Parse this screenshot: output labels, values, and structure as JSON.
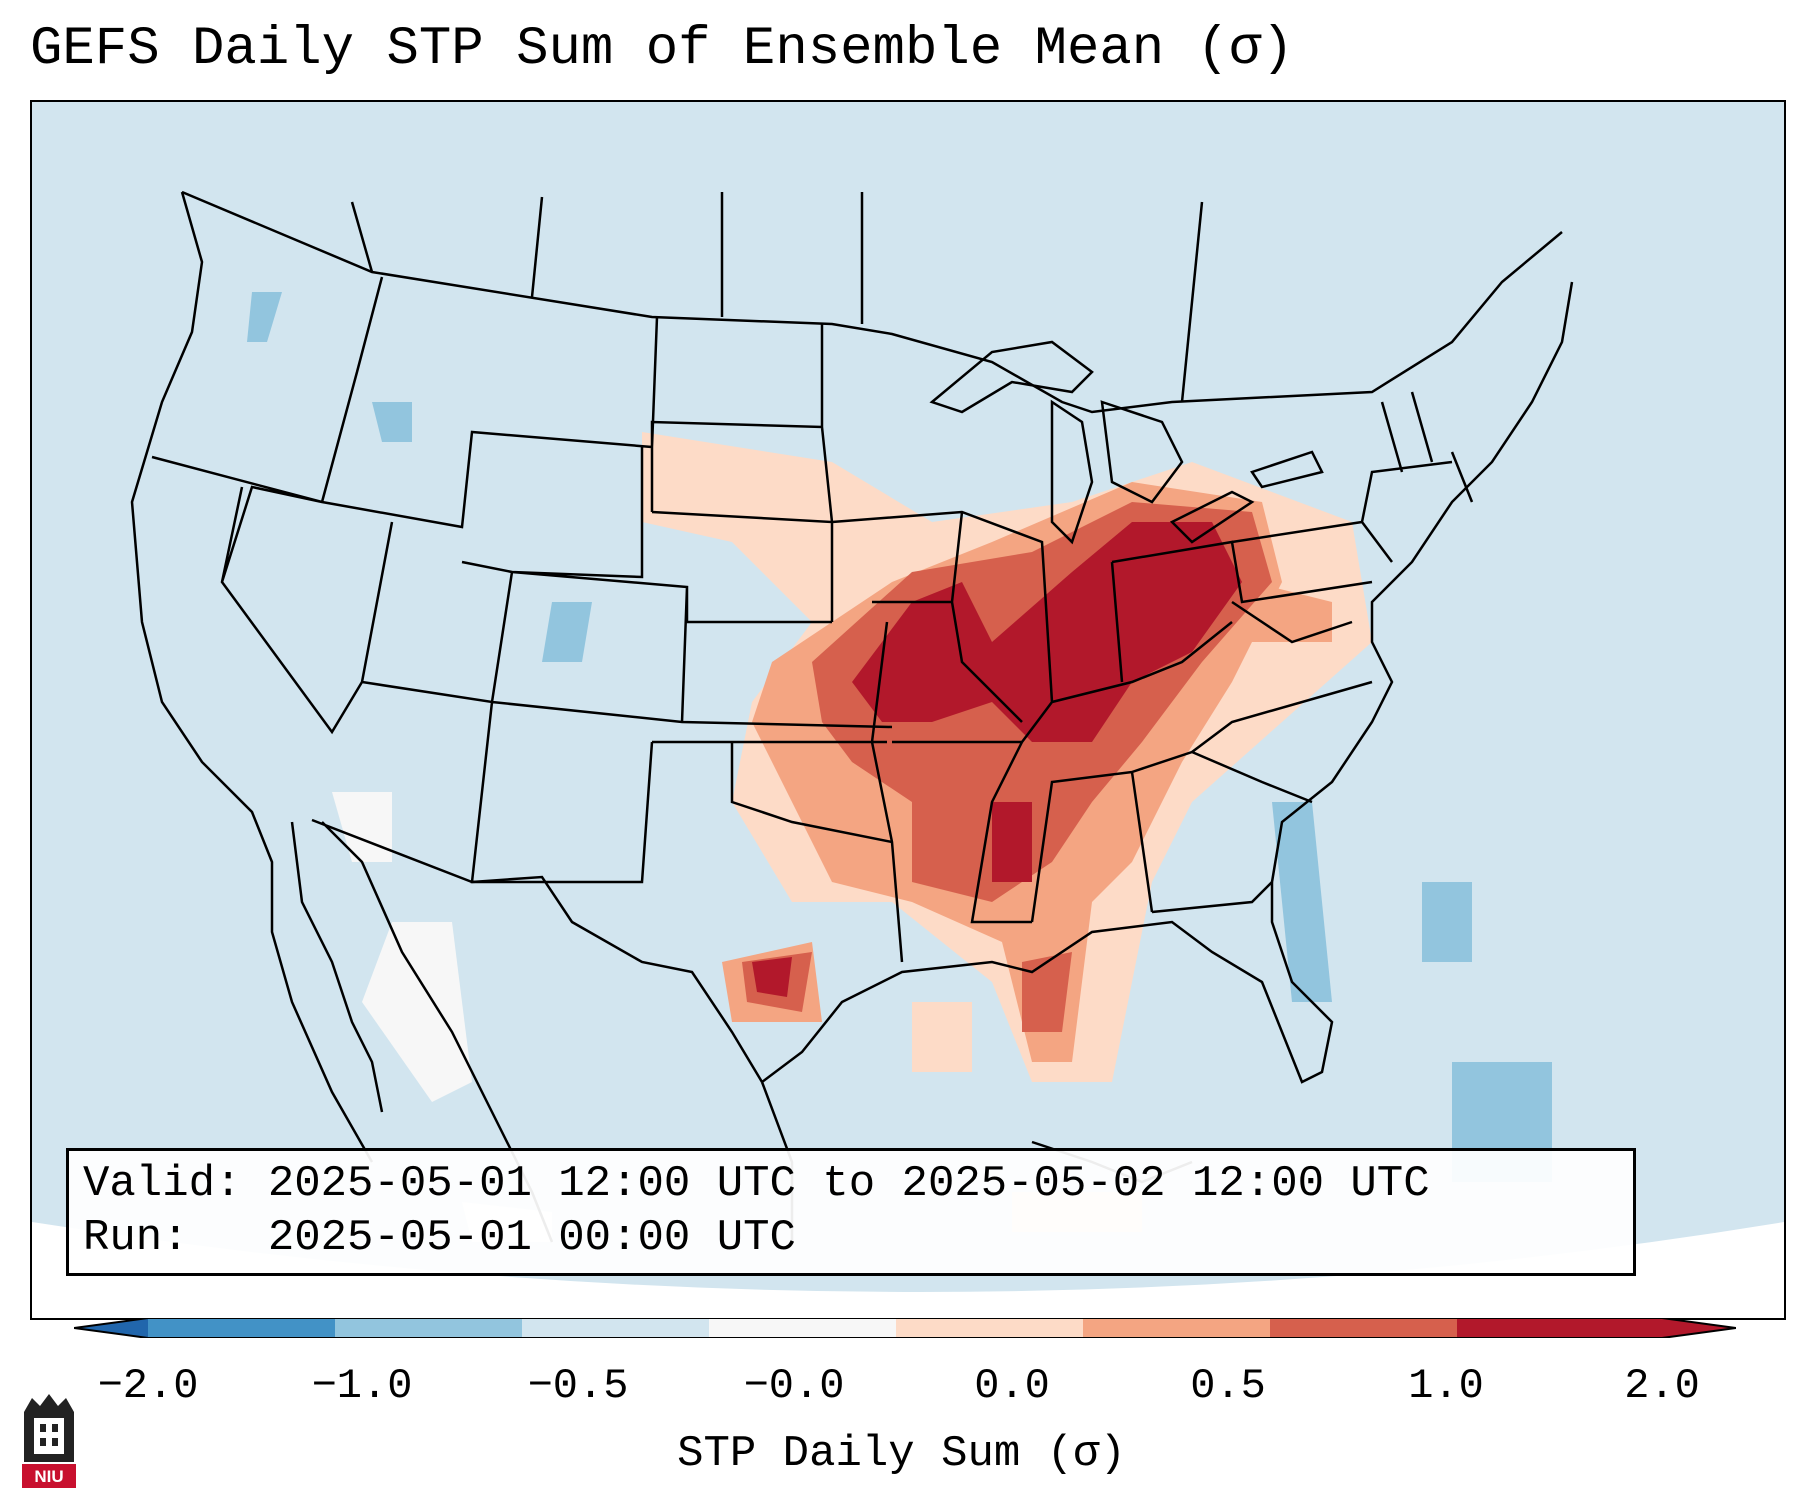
{
  "title": "GEFS Daily STP Sum of Ensemble Mean (σ)",
  "info": {
    "valid_line": "Valid: 2025-05-01 12:00 UTC to 2025-05-02 12:00 UTC",
    "run_line": "Run:   2025-05-01 00:00 UTC"
  },
  "colorbar": {
    "label": "STP Daily Sum (σ)",
    "tick_labels": [
      "−2.0",
      "−1.0",
      "−0.5",
      "−0.0",
      "0.0",
      "0.5",
      "1.0",
      "2.0"
    ],
    "segment_colors": [
      "#4292c6",
      "#92c5de",
      "#d2e5ef",
      "#f7f7f7",
      "#fddbc7",
      "#f4a582",
      "#d6604d",
      "#b2182b"
    ],
    "under_color": "#2166ac",
    "over_color": "#b2182b"
  },
  "map": {
    "region": "Contiguous United States",
    "background_color": "#d2e5ef",
    "boundary_color": "#000000"
  },
  "logo": {
    "text": "NIU",
    "color": "#c8102e"
  }
}
